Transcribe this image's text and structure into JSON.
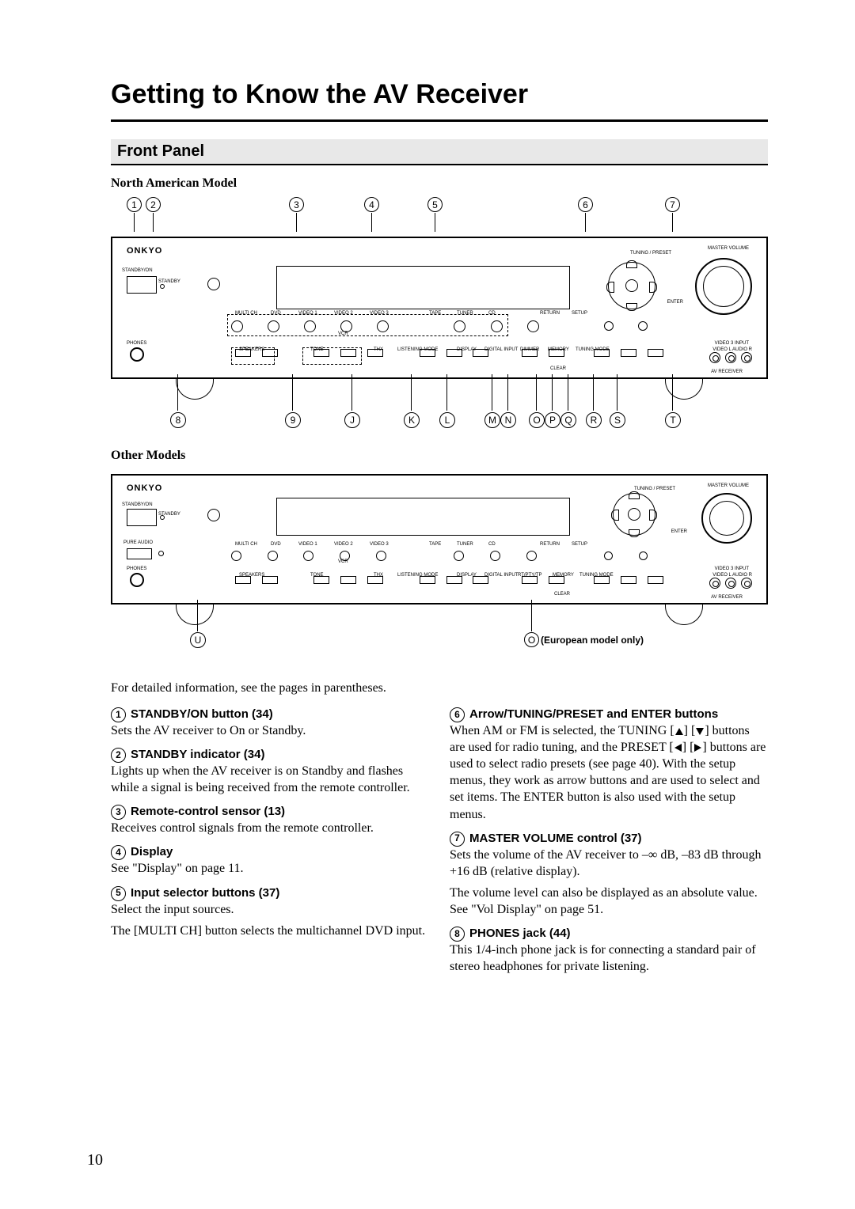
{
  "page_number": "10",
  "main_title": "Getting to Know the AV Receiver",
  "section_header": "Front Panel",
  "model_label_1": "North American Model",
  "model_label_2": "Other Models",
  "brand": "ONKYO",
  "tiny_labels": {
    "master_volume": "MASTER VOLUME",
    "tuning_preset": "TUNING / PRESET",
    "enter": "ENTER",
    "standby_on": "STANDBY/ON",
    "standby": "STANDBY",
    "phones": "PHONES",
    "multi_ch": "MULTI CH",
    "dvd": "DVD",
    "video1": "VIDEO 1",
    "video2": "VIDEO 2",
    "video3": "VIDEO 3",
    "tape": "TAPE",
    "tuner": "TUNER",
    "cd": "CD",
    "return": "RETURN",
    "setup": "SETUP",
    "vcr": "VCR",
    "speakers": "SPEAKERS",
    "tone": "TONE",
    "thx": "THX",
    "listening": "LISTENING MODE",
    "display": "DISPLAY",
    "digital_input": "DIGITAL INPUT",
    "dimmer": "DIMMER",
    "memory": "MEMORY",
    "tuning_mode": "TUNING MODE",
    "clear": "CLEAR",
    "video3_input": "VIDEO 3 INPUT",
    "video_l_audio_r": "VIDEO     L   AUDIO   R",
    "av_receiver": "AV RECEIVER",
    "pure_audio": "PURE AUDIO",
    "rt_stty": "RT/PTY/TP"
  },
  "callouts_top": [
    "1",
    "2",
    "3",
    "4",
    "5",
    "6",
    "7"
  ],
  "callouts_top_x": [
    20,
    44,
    225,
    320,
    400,
    590,
    700
  ],
  "callouts_bottom": [
    "8",
    "9",
    "J",
    "K",
    "L",
    "M",
    "N",
    "O",
    "P",
    "Q",
    "R",
    "S",
    "T"
  ],
  "callouts_bottom_x": [
    75,
    220,
    295,
    370,
    415,
    472,
    492,
    528,
    548,
    568,
    600,
    630,
    700
  ],
  "callout_21": "U",
  "note_15": " (European model only)",
  "intro": "For detailed information, see the pages in parentheses.",
  "items_left": [
    {
      "n": "1",
      "t": "STANDBY/ON button (34)",
      "b": [
        "Sets the AV receiver to On or Standby."
      ]
    },
    {
      "n": "2",
      "t": "STANDBY indicator (34)",
      "b": [
        "Lights up when the AV receiver is on Standby and flashes while a signal is being received from the remote controller."
      ]
    },
    {
      "n": "3",
      "t": "Remote-control sensor (13)",
      "b": [
        "Receives control signals from the remote controller."
      ]
    },
    {
      "n": "4",
      "t": "Display",
      "b": [
        "See \"Display\" on page 11."
      ]
    },
    {
      "n": "5",
      "t": "Input selector buttons (37)",
      "b": [
        "Select the input sources.",
        "The [MULTI CH] button selects the multichannel DVD input."
      ]
    }
  ],
  "items_right": [
    {
      "n": "6",
      "t": "Arrow/TUNING/PRESET and ENTER buttons",
      "b": [
        "When AM or FM is selected, the TUNING [▲] [▼] buttons are used for radio tuning, and the PRESET [◀] [▶] buttons are used to select radio presets (see page 40). With the setup menus, they work as arrow buttons and are used to select and set items. The ENTER button is also used with the setup menus."
      ]
    },
    {
      "n": "7",
      "t": "MASTER VOLUME control (37)",
      "b": [
        "Sets the volume of the AV receiver to –∞ dB, –83 dB through +16 dB (relative display).",
        "The volume level can also be displayed as an absolute value. See \"Vol Display\" on page 51."
      ]
    },
    {
      "n": "8",
      "t": "PHONES jack (44)",
      "b": [
        "This 1/4-inch phone jack is for connecting a standard pair of stereo headphones for private listening."
      ]
    }
  ],
  "colors": {
    "bg": "#ffffff",
    "text": "#000000",
    "section_bg": "#e8e8e8"
  }
}
